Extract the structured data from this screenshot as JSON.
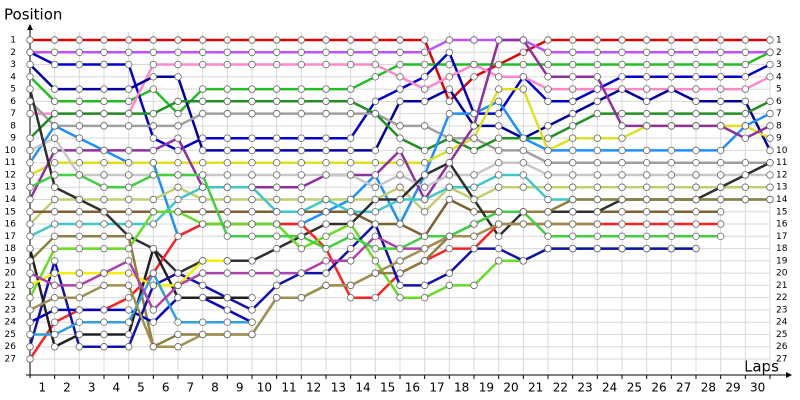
{
  "chart_data": {
    "type": "line",
    "y_label": "Position",
    "x_label": "Laps",
    "x": [
      0,
      1,
      2,
      3,
      4,
      5,
      6,
      7,
      8,
      9,
      10,
      11,
      12,
      13,
      14,
      15,
      16,
      17,
      18,
      19,
      20,
      21,
      22,
      23,
      24,
      25,
      26,
      27,
      28,
      29,
      30
    ],
    "xlim": [
      0,
      30
    ],
    "xticks": [
      1,
      2,
      3,
      4,
      5,
      6,
      7,
      8,
      9,
      10,
      11,
      12,
      13,
      14,
      15,
      16,
      17,
      18,
      19,
      20,
      21,
      22,
      23,
      24,
      25,
      26,
      27,
      28,
      29,
      30
    ],
    "ylim": [
      1,
      27
    ],
    "yticks": [
      1,
      2,
      3,
      4,
      5,
      6,
      7,
      8,
      9,
      10,
      11,
      12,
      13,
      14,
      15,
      16,
      17,
      18,
      19,
      20,
      21,
      22,
      23,
      24,
      25,
      26,
      27
    ],
    "invert_y": true,
    "grid": true,
    "series": [
      {
        "color": "#e00000",
        "values": [
          1,
          1,
          1,
          1,
          1,
          1,
          1,
          1,
          1,
          1,
          1,
          1,
          1,
          1,
          1,
          1,
          1,
          6,
          4,
          3,
          2,
          1,
          1,
          1,
          1,
          1,
          1,
          1,
          1,
          1,
          1
        ]
      },
      {
        "color": "#c050ff",
        "values": [
          2,
          2,
          2,
          2,
          2,
          2,
          2,
          2,
          2,
          2,
          2,
          2,
          2,
          2,
          2,
          2,
          2,
          1,
          1,
          1,
          1,
          2,
          2,
          2,
          2,
          2,
          2,
          2,
          2,
          2,
          2
        ]
      },
      {
        "color": "#20c020",
        "values": [
          4,
          6,
          6,
          6,
          6,
          5,
          7,
          5,
          5,
          5,
          5,
          5,
          5,
          5,
          4,
          3,
          3,
          3,
          3,
          3,
          3,
          3,
          3,
          3,
          3,
          3,
          3,
          3,
          3,
          3,
          2
        ]
      },
      {
        "color": "#0000d0",
        "values": [
          2,
          3,
          3,
          3,
          3,
          9,
          10,
          9,
          9,
          9,
          9,
          9,
          9,
          9,
          6,
          5,
          4,
          2,
          7,
          7,
          4,
          6,
          6,
          5,
          4,
          4,
          4,
          4,
          4,
          4,
          3
        ]
      },
      {
        "color": "#ff88cc",
        "values": [
          7,
          7,
          7,
          7,
          7,
          3,
          3,
          3,
          3,
          3,
          3,
          3,
          3,
          3,
          3,
          4,
          5,
          4,
          3,
          4,
          4,
          5,
          5,
          5,
          5,
          5,
          5,
          5,
          5,
          5,
          4
        ]
      },
      {
        "color": "#0000a0",
        "values": [
          3,
          5,
          5,
          5,
          5,
          4,
          4,
          10,
          10,
          10,
          10,
          10,
          10,
          10,
          10,
          6,
          6,
          5,
          8,
          8,
          9,
          8,
          7,
          6,
          5,
          6,
          5,
          6,
          6,
          6,
          10
        ]
      },
      {
        "color": "#a0a0a0",
        "values": [
          6,
          8,
          8,
          8,
          8,
          8,
          8,
          7,
          7,
          7,
          7,
          7,
          7,
          7,
          7,
          8,
          8,
          9,
          9,
          10,
          10,
          11,
          11,
          11,
          11,
          11,
          11,
          11,
          11,
          11,
          11
        ]
      },
      {
        "color": "#209020",
        "values": [
          9,
          7,
          7,
          7,
          7,
          7,
          6,
          6,
          6,
          6,
          6,
          6,
          6,
          6,
          7,
          9,
          10,
          9,
          10,
          9,
          9,
          9,
          8,
          7,
          7,
          7,
          7,
          7,
          7,
          7,
          6
        ]
      },
      {
        "color": "#1e90ff",
        "values": [
          11,
          8,
          9,
          10,
          11,
          11,
          17,
          16,
          16,
          16,
          16,
          16,
          15,
          14,
          12,
          16,
          12,
          7,
          7,
          6,
          9,
          10,
          10,
          10,
          10,
          10,
          10,
          10,
          10,
          8,
          7
        ]
      },
      {
        "color": "#e0e020",
        "values": [
          12,
          11,
          11,
          11,
          11,
          11,
          11,
          11,
          11,
          11,
          11,
          11,
          11,
          11,
          11,
          11,
          11,
          10,
          9,
          5,
          5,
          10,
          9,
          9,
          9,
          8,
          8,
          8,
          8,
          8,
          9
        ]
      },
      {
        "color": "#9030a0",
        "values": [
          14,
          10,
          10,
          10,
          10,
          10,
          9,
          13,
          13,
          13,
          13,
          13,
          12,
          12,
          12,
          10,
          14,
          11,
          8,
          1,
          1,
          4,
          4,
          4,
          8,
          8,
          8,
          8,
          8,
          9,
          8
        ]
      },
      {
        "color": "#c8c8c8",
        "values": [
          10,
          9,
          12,
          12,
          12,
          12,
          12,
          12,
          12,
          12,
          12,
          12,
          12,
          12,
          13,
          12,
          13,
          12,
          12,
          11,
          11,
          12,
          12,
          12,
          12,
          12,
          12,
          12,
          12,
          12,
          12
        ]
      },
      {
        "color": "#c0d070",
        "values": [
          16,
          14,
          14,
          14,
          14,
          14,
          13,
          14,
          14,
          14,
          14,
          14,
          14,
          14,
          14,
          13,
          15,
          13,
          14,
          13,
          13,
          13,
          13,
          13,
          13,
          13,
          13,
          13,
          13,
          13,
          13
        ]
      },
      {
        "color": "#806030",
        "values": [
          15,
          15,
          15,
          15,
          15,
          15,
          15,
          15,
          15,
          15,
          15,
          15,
          15,
          15,
          16,
          16,
          17,
          14,
          15,
          15,
          15,
          15,
          15,
          15,
          15,
          15,
          15,
          15,
          15,
          null,
          null
        ]
      },
      {
        "color": "#40c8c8",
        "values": [
          17,
          16,
          16,
          16,
          16,
          16,
          14,
          13,
          13,
          13,
          15,
          15,
          14,
          15,
          15,
          14,
          14,
          13,
          13,
          12,
          12,
          14,
          14,
          14,
          14,
          14,
          14,
          14,
          14,
          14,
          14
        ]
      },
      {
        "color": "#303030",
        "values": [
          5,
          13,
          14,
          15,
          17,
          18,
          20,
          19,
          19,
          19,
          18,
          17,
          16,
          16,
          14,
          14,
          12,
          11,
          14,
          17,
          15,
          15,
          15,
          15,
          14,
          14,
          14,
          14,
          13,
          12,
          11
        ]
      },
      {
        "color": "#ff2020",
        "values": [
          27,
          24,
          23,
          23,
          22,
          20,
          17,
          16,
          16,
          16,
          16,
          16,
          18,
          22,
          22,
          20,
          19,
          18,
          18,
          16,
          16,
          16,
          16,
          16,
          16,
          16,
          16,
          16,
          16,
          null,
          null
        ]
      },
      {
        "color": "#66dd22",
        "values": [
          22,
          18,
          18,
          18,
          18,
          15,
          15,
          16,
          16,
          16,
          16,
          18,
          17,
          16,
          19,
          22,
          22,
          21,
          21,
          19,
          19,
          18,
          18,
          18,
          18,
          18,
          18,
          18,
          null,
          null,
          null
        ]
      },
      {
        "color": "#908040",
        "values": [
          19,
          17,
          17,
          17,
          17,
          26,
          25,
          25,
          25,
          25,
          22,
          22,
          21,
          21,
          20,
          20,
          19,
          17,
          16,
          15,
          15,
          15,
          14,
          14,
          14,
          14,
          14,
          14,
          14,
          14,
          14
        ]
      },
      {
        "color": "#1010b0",
        "values": [
          26,
          19,
          26,
          26,
          26,
          21,
          20,
          21,
          22,
          23,
          21,
          20,
          20,
          18,
          16,
          21,
          21,
          20,
          18,
          18,
          19,
          18,
          18,
          18,
          18,
          18,
          18,
          18,
          null,
          null,
          null
        ]
      },
      {
        "color": "#0000c0",
        "values": [
          24,
          23,
          23,
          23,
          23,
          24,
          22,
          22,
          23,
          24,
          null,
          null,
          null,
          null,
          null,
          null,
          null,
          null,
          null,
          null,
          null,
          null,
          null,
          null,
          null,
          null,
          null,
          null,
          null,
          null,
          null
        ]
      },
      {
        "color": "#202020",
        "values": [
          18,
          26,
          25,
          25,
          25,
          18,
          22,
          22,
          22,
          22,
          null,
          null,
          null,
          null,
          null,
          null,
          null,
          null,
          null,
          null,
          null,
          null,
          null,
          null,
          null,
          null,
          null,
          null,
          null,
          null,
          null
        ]
      },
      {
        "color": "#f0f000",
        "values": [
          21,
          20,
          20,
          20,
          20,
          21,
          21,
          19,
          19,
          null,
          null,
          null,
          null,
          null,
          null,
          null,
          null,
          null,
          null,
          null,
          null,
          null,
          null,
          null,
          null,
          null,
          null,
          null,
          null,
          null,
          null
        ]
      },
      {
        "color": "#30a0e0",
        "values": [
          25,
          25,
          24,
          24,
          24,
          20,
          24,
          24,
          24,
          24,
          null,
          null,
          null,
          null,
          null,
          null,
          null,
          null,
          null,
          null,
          null,
          null,
          null,
          null,
          null,
          null,
          null,
          null,
          null,
          null,
          null
        ]
      },
      {
        "color": "#b040b0",
        "values": [
          20,
          21,
          21,
          20,
          19,
          23,
          21,
          20,
          20,
          20,
          20,
          20,
          19,
          19,
          17,
          18,
          18,
          17,
          17,
          null,
          null,
          null,
          null,
          null,
          null,
          null,
          null,
          null,
          null,
          null,
          null
        ]
      },
      {
        "color": "#a09050",
        "values": [
          23,
          22,
          22,
          21,
          21,
          26,
          26,
          25,
          25,
          25,
          22,
          22,
          21,
          21,
          20,
          19,
          18,
          17,
          17,
          16,
          16,
          16,
          16,
          16,
          null,
          null,
          null,
          null,
          null,
          null,
          null
        ]
      },
      {
        "color": "#40d040",
        "values": [
          13,
          12,
          12,
          13,
          13,
          12,
          12,
          12,
          17,
          17,
          17,
          17,
          18,
          17,
          18,
          18,
          17,
          17,
          16,
          15,
          15,
          17,
          17,
          17,
          17,
          17,
          17,
          17,
          17,
          null,
          null
        ]
      }
    ]
  }
}
